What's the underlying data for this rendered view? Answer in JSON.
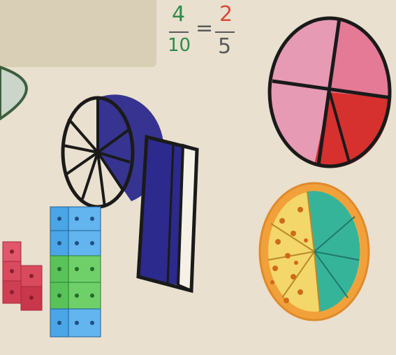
{
  "equation": {
    "left_numerator": "4",
    "left_denominator": "10",
    "equals": "=",
    "right_numerator": "2",
    "right_denominator": "5"
  },
  "colors": {
    "wall": "#e9e0cf",
    "label_box": "#d8cfb6",
    "blue_marker": "#2c2a8c",
    "pink_marker": "#e79ab3",
    "red_marker": "#d6302f",
    "teal_marker": "#36b49a",
    "orange_marker": "#f2a13a",
    "yellow_marker": "#f3d76a",
    "cube_pink": "#e0566a",
    "cube_blue": "#4aa6e6",
    "cube_green": "#59c35a"
  },
  "objects": [
    "pie-circle-tenths-blue",
    "bar-shape-blue",
    "pie-circle-pink-red",
    "pizza-circle-yellow-teal",
    "linking-cubes-pink",
    "linking-cubes-blue-green"
  ]
}
